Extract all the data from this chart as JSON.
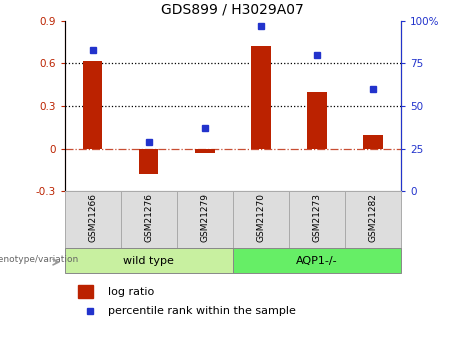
{
  "title": "GDS899 / H3029A07",
  "categories": [
    "GSM21266",
    "GSM21276",
    "GSM21279",
    "GSM21270",
    "GSM21273",
    "GSM21282"
  ],
  "log_ratios": [
    0.62,
    -0.18,
    -0.03,
    0.72,
    0.4,
    0.1
  ],
  "percentile_ranks": [
    83,
    29,
    37,
    97,
    80,
    60
  ],
  "group1_label": "wild type",
  "group2_label": "AQP1-/-",
  "bar_color": "#bb2200",
  "dot_color": "#2233cc",
  "group1_bg": "#c8f0a0",
  "group2_bg": "#66ee66",
  "label_bg": "#dddddd",
  "genotype_label": "genotype/variation",
  "legend_bar": "log ratio",
  "legend_dot": "percentile rank within the sample",
  "ylim_left": [
    -0.3,
    0.9
  ],
  "ylim_right": [
    0,
    100
  ],
  "left_ticks": [
    -0.3,
    0.0,
    0.3,
    0.6,
    0.9
  ],
  "left_tick_labels": [
    "-0.3",
    "0",
    "0.3",
    "0.6",
    "0.9"
  ],
  "right_ticks": [
    0,
    25,
    50,
    75,
    100
  ],
  "right_tick_labels": [
    "0",
    "25",
    "50",
    "75",
    "100%"
  ],
  "hlines_dotted": [
    0.3,
    0.6
  ],
  "hline_zero": 0.0,
  "bar_width": 0.35
}
